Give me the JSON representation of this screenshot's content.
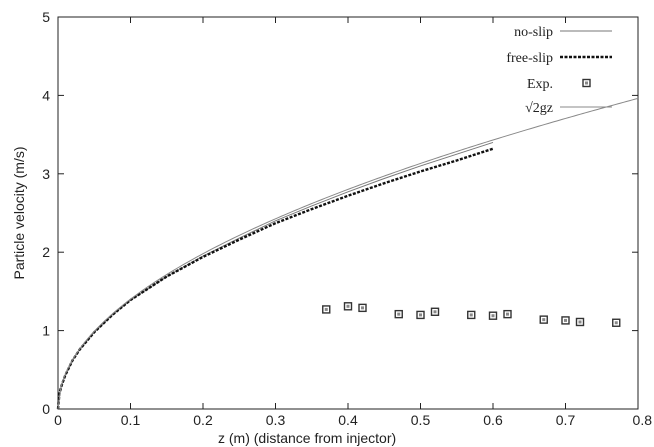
{
  "chart_data": {
    "type": "line",
    "xlabel": "z (m) (distance from injector)",
    "ylabel": "Particle velocity (m/s)",
    "xlim": [
      0,
      0.8
    ],
    "ylim": [
      0,
      5
    ],
    "x_ticks": [
      "0",
      "0.1",
      "0.2",
      "0.3",
      "0.4",
      "0.5",
      "0.6",
      "0.7",
      "0.8"
    ],
    "y_ticks": [
      "0",
      "1",
      "2",
      "3",
      "4",
      "5"
    ],
    "grid": false,
    "legend_position": "top-right",
    "series": [
      {
        "name": "no-slip",
        "style": "solid-thin",
        "color": "#777777",
        "x": [
          0,
          0.002,
          0.005,
          0.01,
          0.02,
          0.03,
          0.05,
          0.075,
          0.1,
          0.15,
          0.2,
          0.25,
          0.3,
          0.35,
          0.4,
          0.45,
          0.5,
          0.55,
          0.6
        ],
        "y": [
          0,
          0.2,
          0.3,
          0.43,
          0.62,
          0.76,
          0.98,
          1.2,
          1.39,
          1.69,
          1.95,
          2.18,
          2.4,
          2.59,
          2.77,
          2.94,
          3.1,
          3.25,
          3.4
        ]
      },
      {
        "name": "free-slip",
        "style": "dashed-thick",
        "color": "#111111",
        "x": [
          0,
          0.002,
          0.005,
          0.01,
          0.02,
          0.03,
          0.05,
          0.075,
          0.1,
          0.15,
          0.2,
          0.25,
          0.3,
          0.35,
          0.4,
          0.45,
          0.5,
          0.55,
          0.6
        ],
        "y": [
          0,
          0.2,
          0.3,
          0.43,
          0.62,
          0.76,
          0.98,
          1.2,
          1.39,
          1.69,
          1.94,
          2.16,
          2.37,
          2.55,
          2.72,
          2.88,
          3.03,
          3.17,
          3.32
        ]
      },
      {
        "name": "Exp.",
        "style": "markers",
        "color": "#333333",
        "x": [
          0.37,
          0.4,
          0.42,
          0.47,
          0.5,
          0.52,
          0.57,
          0.6,
          0.62,
          0.67,
          0.7,
          0.72,
          0.77
        ],
        "y": [
          1.27,
          1.31,
          1.29,
          1.21,
          1.2,
          1.24,
          1.2,
          1.19,
          1.21,
          1.14,
          1.13,
          1.11,
          1.1
        ]
      },
      {
        "name": "√2gz",
        "style": "solid-thin",
        "color": "#888888",
        "function": "sqrt(2*9.81*z)",
        "x_range": [
          0,
          0.8
        ]
      }
    ]
  }
}
